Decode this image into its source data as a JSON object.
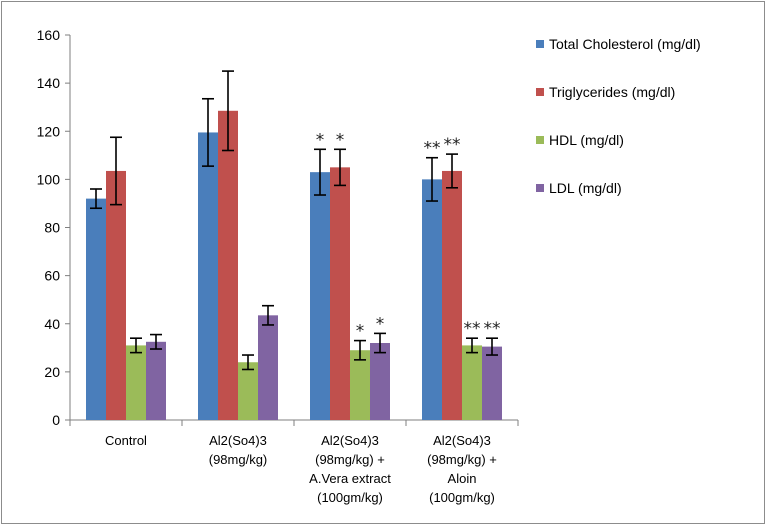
{
  "chart_data": {
    "type": "bar",
    "title": "",
    "xlabel": "",
    "ylabel": "",
    "ylim": [
      0,
      160
    ],
    "yticks": [
      0,
      20,
      40,
      60,
      80,
      100,
      120,
      140,
      160
    ],
    "grid": false,
    "legend_position": "right",
    "categories": [
      [
        "Control"
      ],
      [
        "Al2(So4)3",
        "(98mg/kg)"
      ],
      [
        "Al2(So4)3",
        "(98mg/kg) +",
        "A.Vera extract",
        "(100gm/kg)"
      ],
      [
        "Al2(So4)3",
        "(98mg/kg) +",
        "Aloin",
        "(100gm/kg)"
      ]
    ],
    "series": [
      {
        "name": "Total Cholesterol (mg/dl)",
        "color": "#4a7ebb",
        "values": [
          92,
          119.5,
          103,
          100
        ],
        "errors": [
          4,
          14,
          9.5,
          9
        ]
      },
      {
        "name": "Triglycerides (mg/dl)",
        "color": "#c0504d",
        "values": [
          103.5,
          128.5,
          105,
          103.5
        ],
        "errors": [
          14,
          16.5,
          7.5,
          7
        ]
      },
      {
        "name": "HDL (mg/dl)",
        "color": "#9bbb59",
        "values": [
          31,
          24,
          29,
          31
        ],
        "errors": [
          3,
          3,
          4,
          3
        ]
      },
      {
        "name": "LDL (mg/dl)",
        "color": "#8064a2",
        "values": [
          32.5,
          43.5,
          32,
          30.5
        ],
        "errors": [
          3,
          4,
          4,
          3.5
        ]
      }
    ],
    "annotations": [
      {
        "category": 2,
        "series": 0,
        "text": "*"
      },
      {
        "category": 2,
        "series": 1,
        "text": "*"
      },
      {
        "category": 2,
        "series": 2,
        "text": "*"
      },
      {
        "category": 2,
        "series": 3,
        "text": "*"
      },
      {
        "category": 3,
        "series": 0,
        "text": "**"
      },
      {
        "category": 3,
        "series": 1,
        "text": "**"
      },
      {
        "category": 3,
        "series": 2,
        "text": "**"
      },
      {
        "category": 3,
        "series": 3,
        "text": "**"
      }
    ]
  }
}
